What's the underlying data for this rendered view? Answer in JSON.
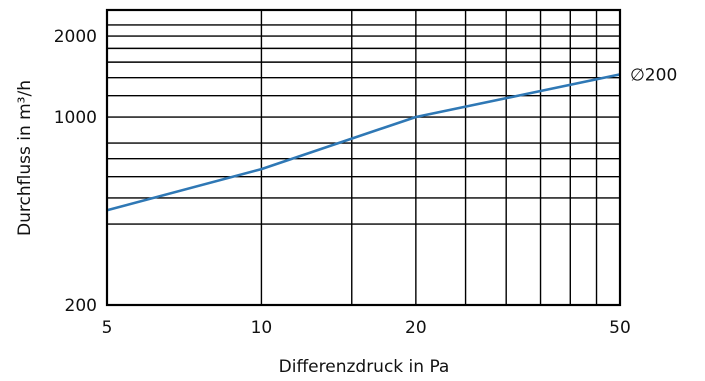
{
  "chart_data": {
    "type": "line",
    "xlabel": "Differenzdruck in Pa",
    "ylabel": "Durchfluss in m³/h",
    "x_scale": "log",
    "y_scale": "log",
    "xlim": [
      5,
      50
    ],
    "ylim": [
      200,
      2500
    ],
    "x_ticks": [
      {
        "value": 5,
        "label": "5"
      },
      {
        "value": 10,
        "label": "10"
      },
      {
        "value": 20,
        "label": "20"
      },
      {
        "value": 50,
        "label": "50"
      }
    ],
    "y_ticks": [
      {
        "value": 200,
        "label": "200"
      },
      {
        "value": 1000,
        "label": "1000"
      },
      {
        "value": 2000,
        "label": "2000"
      }
    ],
    "x_gridlines": [
      5,
      10,
      15,
      20,
      25,
      30,
      35,
      40,
      45,
      50
    ],
    "y_gridlines": [
      200,
      400,
      500,
      600,
      700,
      800,
      1000,
      1200,
      1400,
      1600,
      1800,
      2000,
      2200,
      2500
    ],
    "grid": true,
    "series": [
      {
        "name": "∅200",
        "color": "#2f78b5",
        "points": [
          {
            "x": 5,
            "y": 450
          },
          {
            "x": 10,
            "y": 640
          },
          {
            "x": 20,
            "y": 1000
          },
          {
            "x": 50,
            "y": 1440
          }
        ]
      }
    ]
  }
}
